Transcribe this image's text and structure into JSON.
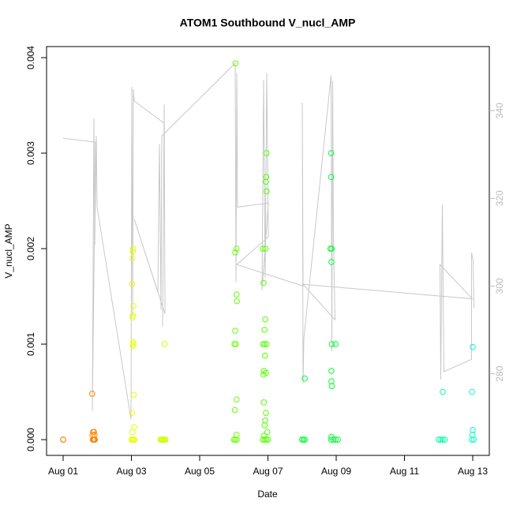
{
  "chart_data": {
    "type": "scatter",
    "title": "ATOM1 Southbound V_nucl_AMP",
    "x_label": "Date",
    "y_label": "V_nucl_AMP",
    "xlim": [
      0.514,
      13.486
    ],
    "ylim": [
      -0.000165,
      0.004116
    ],
    "y2lim": [
      261.4,
      354.6
    ],
    "xticks": [
      {
        "value": 1,
        "label": "Aug 01"
      },
      {
        "value": 3,
        "label": "Aug 03"
      },
      {
        "value": 5,
        "label": "Aug 05"
      },
      {
        "value": 7,
        "label": "Aug 07"
      },
      {
        "value": 9,
        "label": "Aug 09"
      },
      {
        "value": 11,
        "label": "Aug 11"
      },
      {
        "value": 13,
        "label": "Aug 13"
      }
    ],
    "yticks": [
      {
        "value": 0,
        "label": "0.000"
      },
      {
        "value": 0.001,
        "label": "0.001"
      },
      {
        "value": 0.002,
        "label": "0.002"
      },
      {
        "value": 0.003,
        "label": "0.003"
      },
      {
        "value": 0.004,
        "label": "0.004"
      }
    ],
    "y2ticks": [
      280,
      300,
      320,
      340
    ],
    "series": [
      {
        "type": "line",
        "axis": "y2",
        "color": "#c8c8c8",
        "x": [
          1.0,
          1.948,
          1.855,
          1.902,
          1.925,
          1.971,
          1.994,
          2.988,
          3.012,
          3.035,
          3.058,
          3.081,
          3.96,
          3.913,
          3.96,
          3.983,
          3.081,
          3.775,
          3.821,
          3.867,
          3.89,
          6.04,
          6.064,
          6.087,
          6.11,
          7.012,
          6.827,
          6.873,
          6.919,
          6.965,
          7.012,
          6.087,
          8.029,
          8.006,
          8.029,
          8.052,
          8.85,
          8.873,
          8.896,
          8.919,
          8.965,
          8.029,
          12.988,
          12.04,
          12.064,
          12.11,
          12.156,
          12.965,
          12.965,
          13.012,
          13.035
        ],
        "values": [
          333.7,
          332.8,
          271.5,
          338.2,
          309.4,
          334.2,
          318.0,
          269.6,
          345.4,
          293.1,
          344.9,
          342.2,
          337.1,
          290.8,
          341.4,
          293.7,
          315.3,
          298.6,
          332.4,
          294.6,
          334.2,
          350.8,
          300.9,
          348.6,
          318.0,
          318.9,
          299.1,
          347.0,
          301.8,
          348.6,
          311.2,
          304.9,
          300.0,
          341.8,
          277.8,
          288.1,
          348.1,
          285.1,
          346.8,
          311.2,
          292.3,
          300.4,
          297.1,
          304.9,
          278.7,
          318.6,
          280.5,
          283.3,
          307.6,
          305.8,
          295.0
        ]
      },
      {
        "type": "scatter",
        "color": "#ff8000",
        "x": [
          1.0,
          1.0,
          1.85,
          1.87,
          1.89,
          1.91,
          1.93,
          1.88,
          1.9,
          1.92,
          1.86
        ],
        "values": [
          0,
          0,
          0.00048,
          0,
          0,
          0,
          0,
          8e-05,
          8e-05,
          5e-05,
          5e-05
        ]
      },
      {
        "type": "scatter",
        "color": "#e6ff00",
        "x": [
          3.05,
          3.04,
          3.03,
          3.02,
          3.06,
          3.04,
          3.03,
          3.05,
          3.06,
          3.04,
          3.07,
          3.02,
          3.08,
          3.03,
          3.0,
          3.03,
          3.06,
          3.09
        ],
        "values": [
          0.002,
          0.00197,
          0.0019,
          0.00163,
          0.0014,
          0.0013,
          0.00128,
          0.00102,
          0.001,
          0.00098,
          0.00047,
          0.00028,
          0.00013,
          8e-05,
          0,
          0,
          0,
          0
        ]
      },
      {
        "type": "scatter",
        "color": "#ccff00",
        "x": [
          3.85,
          3.88,
          3.91,
          3.94,
          3.97,
          4.0,
          3.97
        ],
        "values": [
          0,
          0,
          0,
          0,
          0,
          0,
          0.001
        ]
      },
      {
        "type": "scatter",
        "color": "#66ff00",
        "x": [
          6.05,
          6.08,
          6.04,
          6.08,
          6.09,
          6.04,
          6.02,
          6.06,
          6.08,
          6.03,
          6.08,
          6.0,
          6.04,
          6.09
        ],
        "values": [
          0.00394,
          0.002,
          0.00196,
          0.00152,
          0.00145,
          0.00114,
          0.001,
          0.001,
          0.00042,
          0.00031,
          5e-05,
          0,
          0,
          0
        ]
      },
      {
        "type": "scatter",
        "color": "#55ff00",
        "x": [
          6.96,
          6.95,
          6.94,
          6.96,
          6.85,
          6.93,
          6.87,
          6.92,
          6.9,
          6.86,
          6.9,
          6.96,
          6.91,
          6.88,
          6.94,
          6.87,
          6.88,
          6.94,
          6.92,
          6.9,
          6.98,
          6.88,
          6.85,
          6.9,
          6.95,
          7.0
        ],
        "values": [
          0.003,
          0.00275,
          0.0027,
          0.0026,
          0.002,
          0.002,
          0.00164,
          0.00126,
          0.00115,
          0.001,
          0.001,
          0.001,
          0.00088,
          0.00072,
          0.0007,
          0.00068,
          0.00039,
          0.00028,
          0.0002,
          0.00015,
          8e-05,
          4e-05,
          0,
          0,
          0,
          0
        ]
      },
      {
        "type": "scatter",
        "color": "#00ff33",
        "x": [
          8.0,
          8.04,
          8.08,
          8.08,
          8.85,
          8.85,
          8.83,
          8.87,
          8.86,
          8.87,
          8.98,
          8.86,
          8.86,
          8.87,
          8.86,
          8.85,
          8.92,
          8.98,
          9.05
        ],
        "values": [
          0,
          0,
          0,
          0.00064,
          0.003,
          0.00275,
          0.002,
          0.002,
          0.00186,
          0.001,
          0.001,
          0.00072,
          0.00061,
          0.00056,
          3e-05,
          0,
          0,
          0,
          0
        ]
      },
      {
        "type": "scatter",
        "color": "#00ffaa",
        "x": [
          12.0,
          12.06,
          12.12,
          12.18,
          12.12
        ],
        "values": [
          0,
          0,
          0,
          0,
          0.0005
        ]
      },
      {
        "type": "scatter",
        "color": "#00ffc8",
        "x": [
          13.0,
          12.98,
          13.0,
          12.99,
          12.97,
          13.03
        ],
        "values": [
          0.00097,
          0.0005,
          0.0001,
          5e-05,
          0,
          0
        ]
      }
    ]
  }
}
